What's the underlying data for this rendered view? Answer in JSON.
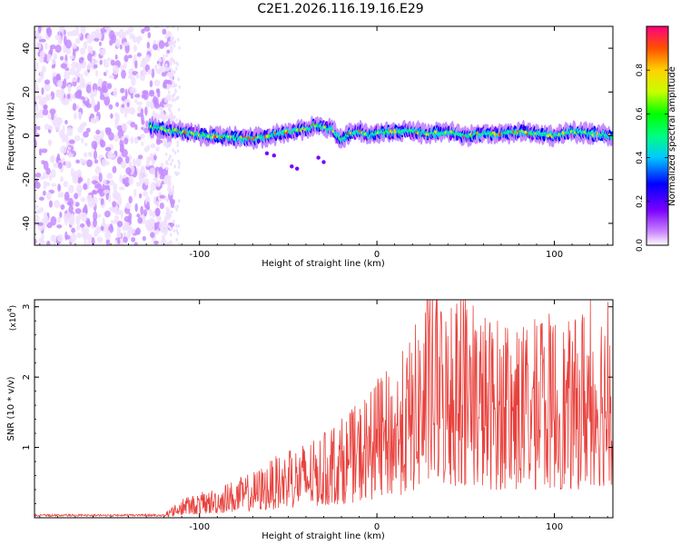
{
  "figure_title": "C2E1.2026.116.19.16.E29",
  "chart_data": [
    {
      "type": "heatmap",
      "title": "C2E1.2026.116.19.16.E29",
      "xlabel": "Height of straight line (km)",
      "ylabel": "Frequency (Hz)",
      "xlim": [
        -193,
        133
      ],
      "ylim": [
        -50,
        50
      ],
      "xticks": [
        -100,
        0,
        100
      ],
      "yticks": [
        -40,
        -20,
        0,
        20,
        40
      ],
      "xtick_labels": [
        "-100",
        "0",
        "100"
      ],
      "ytick_labels": [
        "-40",
        "-20",
        "0",
        "20",
        "40"
      ],
      "noise_region_x": [
        -193,
        -115
      ],
      "signal_onset_km": -128,
      "ridge": {
        "x_km": [
          -128,
          -110,
          -95,
          -80,
          -65,
          -50,
          -40,
          -35,
          -30,
          -25,
          -20,
          -15,
          -10,
          -5,
          0,
          10,
          20,
          30,
          40,
          50,
          60,
          70,
          80,
          90,
          100,
          110,
          120,
          133
        ],
        "freq_hz": [
          4,
          2,
          0,
          -1,
          -1,
          2,
          3,
          5,
          4,
          3,
          -2,
          1,
          2,
          0,
          1,
          2,
          2,
          1,
          2,
          0,
          1,
          1,
          2,
          1,
          0,
          2,
          1,
          0
        ]
      },
      "colorbar": {
        "label": "Normalized spectral amplitude",
        "range": [
          0,
          1
        ],
        "ticks": [
          0.0,
          0.2,
          0.4,
          0.6,
          0.8
        ],
        "tick_labels": [
          "0.0",
          "0.2",
          "0.4",
          "0.6",
          "0.8"
        ]
      }
    },
    {
      "type": "line",
      "title": "",
      "xlabel": "Height of straight line (km)",
      "ylabel": "SNR (10 * v/v)",
      "y_multiplier": "(x10",
      "y_multiplier_exp": "4",
      "y_multiplier_close": ")",
      "xlim": [
        -193,
        133
      ],
      "ylim": [
        0,
        3.1
      ],
      "xticks": [
        -100,
        0,
        100
      ],
      "yticks": [
        1,
        2,
        3
      ],
      "xtick_labels": [
        "-100",
        "0",
        "100"
      ],
      "ytick_labels": [
        "1",
        "2",
        "3"
      ],
      "series_color": "#e8413c",
      "envelope": {
        "x_km": [
          -193,
          -120,
          -110,
          -90,
          -70,
          -50,
          -30,
          -20,
          -10,
          0,
          10,
          20,
          30,
          40,
          50,
          60,
          70,
          80,
          90,
          100,
          110,
          120,
          133
        ],
        "peak_snr": [
          0.03,
          0.05,
          0.25,
          0.4,
          0.6,
          0.9,
          1.1,
          1.3,
          1.5,
          1.8,
          2.0,
          2.4,
          3.1,
          2.8,
          3.0,
          2.7,
          2.6,
          2.5,
          2.6,
          2.7,
          2.5,
          3.0,
          2.9
        ]
      }
    }
  ]
}
